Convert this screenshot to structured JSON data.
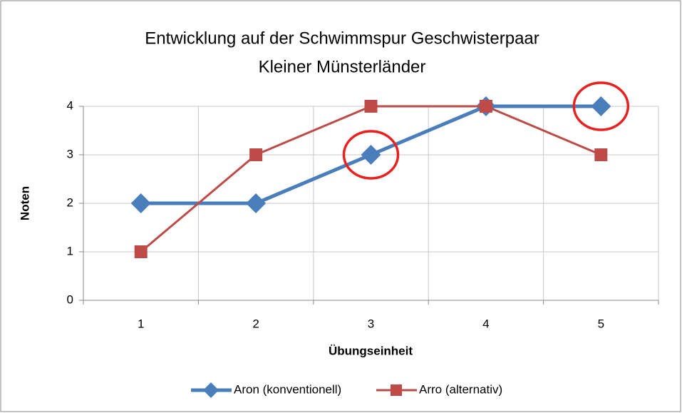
{
  "chart_data": {
    "type": "line",
    "title": [
      "Entwicklung auf der Schwimmspur Geschwisterpaar",
      "Kleiner Münsterländer"
    ],
    "x_label": "Übungseinheit",
    "y_label": "Noten",
    "categories": [
      "1",
      "2",
      "3",
      "4",
      "5"
    ],
    "series": [
      {
        "name": "Aron (konventionell)",
        "color": "#4a7ebb",
        "marker": "diamond",
        "values": [
          2,
          2,
          3,
          4,
          4
        ]
      },
      {
        "name": "Arro (alternativ)",
        "color": "#be4b48",
        "marker": "square",
        "values": [
          1,
          3,
          4,
          4,
          3
        ]
      }
    ],
    "ylim": [
      0,
      4
    ],
    "yticks": [
      0,
      1,
      2,
      3,
      4
    ],
    "grid": true,
    "legend": "bottom",
    "highlighted_points": {
      "color": "#e8201e",
      "series": 0,
      "indices": [
        2,
        4
      ]
    }
  }
}
